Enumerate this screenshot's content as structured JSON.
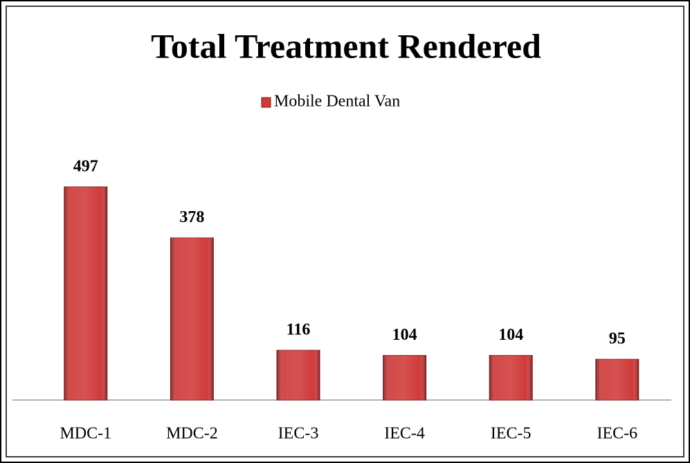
{
  "chart_data": {
    "type": "bar",
    "title": "Total Treatment Rendered",
    "series": [
      {
        "name": "Mobile Dental Van",
        "color": "#d03a3a",
        "values": [
          497,
          378,
          116,
          104,
          104,
          95
        ]
      }
    ],
    "categories": [
      "MDC-1",
      "MDC-2",
      "IEC-3",
      "IEC-4",
      "IEC-5",
      "IEC-6"
    ],
    "legend": "top"
  }
}
